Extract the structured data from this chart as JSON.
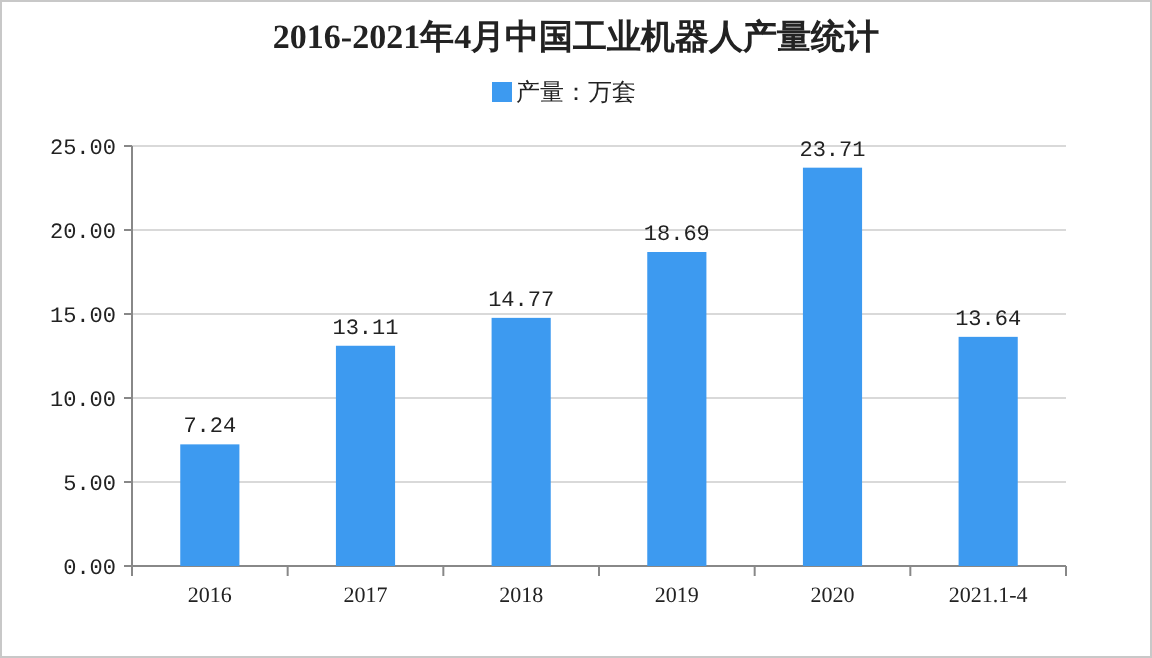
{
  "chart_data": {
    "type": "bar",
    "title": "2016-2021年4月中国工业机器人产量统计",
    "categories": [
      "2016",
      "2017",
      "2018",
      "2019",
      "2020",
      "2021.1-4"
    ],
    "series": [
      {
        "name": "产量：万套",
        "color": "#3d9af0",
        "values": [
          7.24,
          13.11,
          14.77,
          18.69,
          23.71,
          13.64
        ]
      }
    ],
    "ylim": [
      0,
      25
    ],
    "yticks": [
      {
        "value": 0,
        "label": "0.00"
      },
      {
        "value": 5,
        "label": "5.00"
      },
      {
        "value": 10,
        "label": "10.00"
      },
      {
        "value": 15,
        "label": "15.00"
      },
      {
        "value": 20,
        "label": "20.00"
      },
      {
        "value": 25,
        "label": "25.00"
      }
    ],
    "grid": "y",
    "legend": "top",
    "data_labels": true
  }
}
